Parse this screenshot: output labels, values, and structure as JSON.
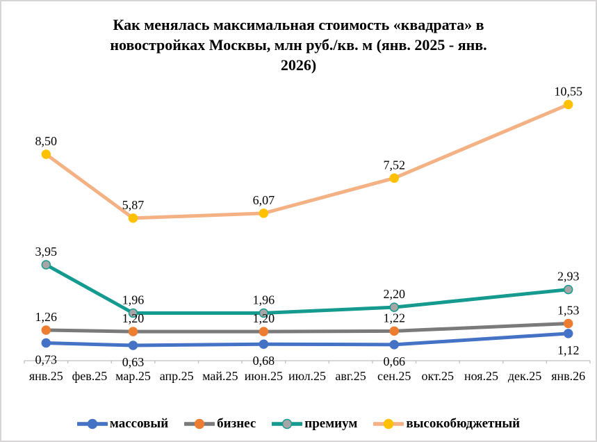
{
  "frame": {
    "border_color": "#d6d4d4",
    "background": "#ffffff"
  },
  "chart_data": {
    "type": "line",
    "title": "Как менялась максимальная стоимость «квадрата» в новостройках Москвы, млн руб./кв. м (янв. 2025 - янв. 2026)",
    "title_lines": [
      "Как менялась максимальная стоимость «квадрата» в",
      "новостройках Москвы, млн руб./кв. м (янв. 2025 - янв.",
      "2026)"
    ],
    "xlabel": "",
    "ylabel": "млн руб./кв. м",
    "categories": [
      "янв.25",
      "фев.25",
      "мар.25",
      "апр.25",
      "май.25",
      "июн.25",
      "июл.25",
      "авг.25",
      "сен.25",
      "окт.25",
      "ноя.25",
      "дек.25",
      "янв.26"
    ],
    "point_month_indices": [
      0,
      2,
      5,
      8,
      12
    ],
    "series": [
      {
        "key": "massovyy",
        "name": "массовый",
        "line_color": "#4472C4",
        "marker_fill": "#4472C4",
        "marker_stroke": "#4472C4",
        "values": [
          0.73,
          0.63,
          0.68,
          0.66,
          1.12
        ],
        "labels": [
          "0,73",
          "0,63",
          "0,68",
          "0,66",
          "1,12"
        ],
        "label_position": "below"
      },
      {
        "key": "biznes",
        "name": "бизнес",
        "line_color": "#7A7A7A",
        "marker_fill": "#ED7D31",
        "marker_stroke": "#ED7D31",
        "values": [
          1.26,
          1.2,
          1.2,
          1.22,
          1.53
        ],
        "labels": [
          "1,26",
          "1,20",
          "1,20",
          "1,22",
          "1,53"
        ],
        "label_position": "above"
      },
      {
        "key": "premium",
        "name": "премиум",
        "line_color": "#149A8F",
        "marker_fill": "#A6A6A6",
        "marker_stroke": "#149A8F",
        "values": [
          3.95,
          1.96,
          1.96,
          2.2,
          2.93
        ],
        "labels": [
          "3,95",
          "1,96",
          "1,96",
          "2,20",
          "2,93"
        ],
        "label_position": "above"
      },
      {
        "key": "vysokobyudzhetnyy",
        "name": "высокобюджетный",
        "line_color": "#F4B183",
        "marker_fill": "#FFC000",
        "marker_stroke": "#FFC000",
        "values": [
          8.5,
          5.87,
          6.07,
          7.52,
          10.55
        ],
        "labels": [
          "8,50",
          "5,87",
          "6,07",
          "7,52",
          "10,55"
        ],
        "label_position": "above"
      }
    ],
    "ylim": [
      0,
      11
    ],
    "grid": false,
    "y_axis_visible": false,
    "axis_color": "#BFBFBF",
    "label_color": "#000000",
    "legend_position": "bottom"
  }
}
